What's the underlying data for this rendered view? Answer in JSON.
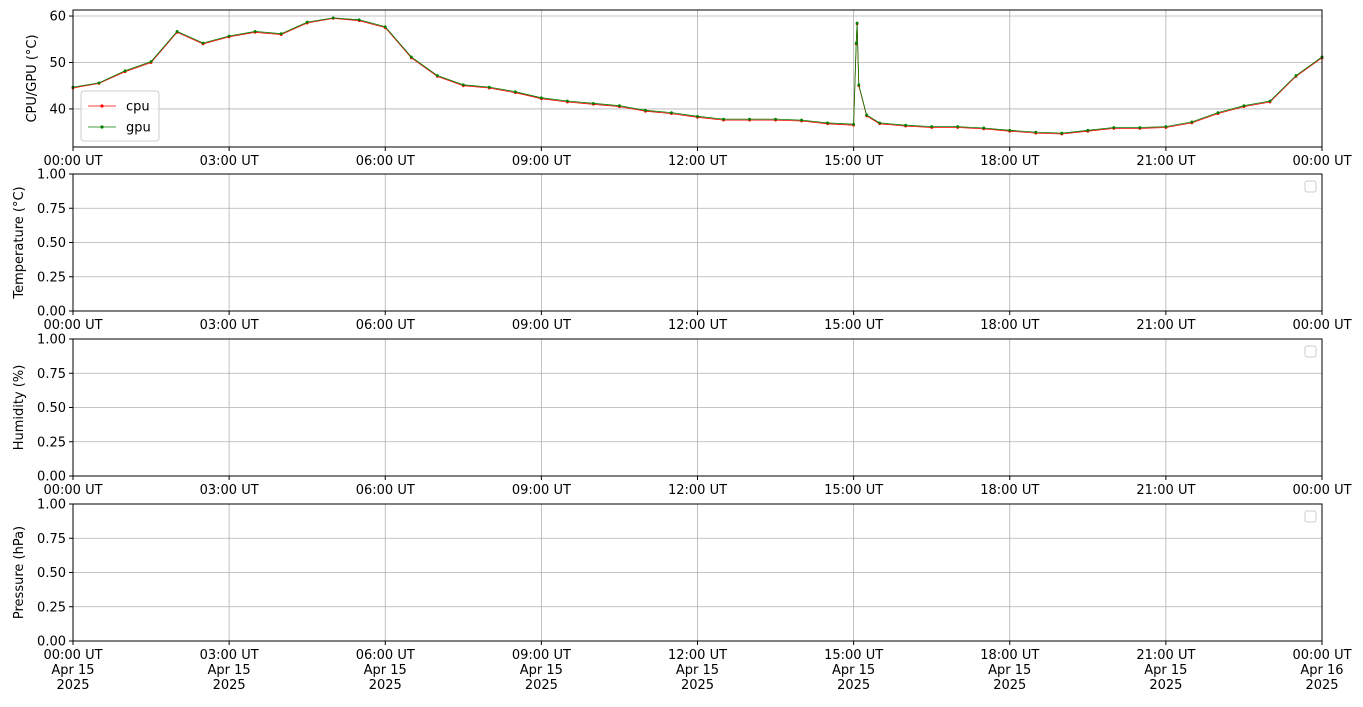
{
  "chart_data": [
    {
      "type": "line",
      "ylabel": "CPU/GPU (°C)",
      "x": [
        "2025-04-15T00:00",
        "2025-04-15T00:30",
        "2025-04-15T01:00",
        "2025-04-15T01:30",
        "2025-04-15T02:00",
        "2025-04-15T02:30",
        "2025-04-15T03:00",
        "2025-04-15T03:30",
        "2025-04-15T04:00",
        "2025-04-15T04:30",
        "2025-04-15T05:00",
        "2025-04-15T05:30",
        "2025-04-15T06:00",
        "2025-04-15T06:30",
        "2025-04-15T07:00",
        "2025-04-15T07:30",
        "2025-04-15T08:00",
        "2025-04-15T08:30",
        "2025-04-15T09:00",
        "2025-04-15T09:30",
        "2025-04-15T10:00",
        "2025-04-15T10:30",
        "2025-04-15T11:00",
        "2025-04-15T11:30",
        "2025-04-15T12:00",
        "2025-04-15T12:30",
        "2025-04-15T13:00",
        "2025-04-15T13:30",
        "2025-04-15T14:00",
        "2025-04-15T14:30",
        "2025-04-15T15:00",
        "2025-04-15T15:03",
        "2025-04-15T15:04",
        "2025-04-15T15:06",
        "2025-04-15T15:15",
        "2025-04-15T15:30",
        "2025-04-15T16:00",
        "2025-04-15T16:30",
        "2025-04-15T17:00",
        "2025-04-15T17:30",
        "2025-04-15T18:00",
        "2025-04-15T18:30",
        "2025-04-15T19:00",
        "2025-04-15T19:30",
        "2025-04-15T20:00",
        "2025-04-15T20:30",
        "2025-04-15T21:00",
        "2025-04-15T21:30",
        "2025-04-15T22:00",
        "2025-04-15T22:30",
        "2025-04-15T23:00",
        "2025-04-15T23:30",
        "2025-04-16T00:00"
      ],
      "series": [
        {
          "name": "cpu",
          "color": "#ff0000",
          "values": [
            44.5,
            45.5,
            48,
            50,
            56.5,
            54,
            55.5,
            56.5,
            56,
            58.5,
            59.5,
            59,
            57.5,
            51,
            47,
            45,
            44.5,
            43.5,
            42.2,
            41.5,
            41,
            40.5,
            39.5,
            39,
            38.2,
            37.6,
            37.6,
            37.6,
            37.4,
            36.8,
            36.5,
            54,
            58.3,
            45,
            38.5,
            36.8,
            36.3,
            36,
            36,
            35.7,
            35.2,
            34.8,
            34.6,
            35.2,
            35.8,
            35.8,
            36,
            37,
            39,
            40.5,
            41.5,
            47,
            51
          ]
        },
        {
          "name": "gpu",
          "color": "#008000",
          "values": [
            44.7,
            45.6,
            48.2,
            50.2,
            56.7,
            54.2,
            55.7,
            56.7,
            56.2,
            58.7,
            59.6,
            59.2,
            57.7,
            51.2,
            47.2,
            45.2,
            44.7,
            43.7,
            42.4,
            41.7,
            41.2,
            40.7,
            39.7,
            39.2,
            38.4,
            37.8,
            37.8,
            37.8,
            37.6,
            37,
            36.7,
            54.2,
            58.5,
            45.2,
            38.7,
            37,
            36.5,
            36.2,
            36.2,
            35.9,
            35.4,
            35,
            34.8,
            35.4,
            36,
            36,
            36.2,
            37.2,
            39.2,
            40.7,
            41.7,
            47.2,
            51.2
          ]
        }
      ],
      "xlim": [
        "2025-04-15T00:00",
        "2025-04-16T00:00"
      ],
      "xticks": [
        {
          "value": "2025-04-15T00:00",
          "label": "00:00 UT"
        },
        {
          "value": "2025-04-15T03:00",
          "label": "03:00 UT"
        },
        {
          "value": "2025-04-15T06:00",
          "label": "06:00 UT"
        },
        {
          "value": "2025-04-15T09:00",
          "label": "09:00 UT"
        },
        {
          "value": "2025-04-15T12:00",
          "label": "12:00 UT"
        },
        {
          "value": "2025-04-15T15:00",
          "label": "15:00 UT"
        },
        {
          "value": "2025-04-15T18:00",
          "label": "18:00 UT"
        },
        {
          "value": "2025-04-15T21:00",
          "label": "21:00 UT"
        },
        {
          "value": "2025-04-16T00:00",
          "label": "00:00 UT"
        }
      ],
      "ylim": [
        31.8,
        61.3
      ],
      "yticks": [
        40,
        50,
        60
      ],
      "grid": true,
      "legend": "lower left"
    },
    {
      "type": "line",
      "ylabel": "Temperature (°C)",
      "series": [],
      "xlim": [
        "2025-04-15T00:00",
        "2025-04-16T00:00"
      ],
      "xticks": [
        {
          "value": "2025-04-15T00:00",
          "label": "00:00 UT"
        },
        {
          "value": "2025-04-15T03:00",
          "label": "03:00 UT"
        },
        {
          "value": "2025-04-15T06:00",
          "label": "06:00 UT"
        },
        {
          "value": "2025-04-15T09:00",
          "label": "09:00 UT"
        },
        {
          "value": "2025-04-15T12:00",
          "label": "12:00 UT"
        },
        {
          "value": "2025-04-15T15:00",
          "label": "15:00 UT"
        },
        {
          "value": "2025-04-15T18:00",
          "label": "18:00 UT"
        },
        {
          "value": "2025-04-15T21:00",
          "label": "21:00 UT"
        },
        {
          "value": "2025-04-16T00:00",
          "label": "00:00 UT"
        }
      ],
      "ylim": [
        0,
        1
      ],
      "yticks": [
        {
          "value": 0,
          "label": "0.00"
        },
        {
          "value": 0.25,
          "label": "0.25"
        },
        {
          "value": 0.5,
          "label": "0.50"
        },
        {
          "value": 0.75,
          "label": "0.75"
        },
        {
          "value": 1,
          "label": "1.00"
        }
      ],
      "grid": true,
      "legend": "upper right"
    },
    {
      "type": "line",
      "ylabel": "Humidity (%)",
      "series": [],
      "xlim": [
        "2025-04-15T00:00",
        "2025-04-16T00:00"
      ],
      "xticks": [
        {
          "value": "2025-04-15T00:00",
          "label": "00:00 UT"
        },
        {
          "value": "2025-04-15T03:00",
          "label": "03:00 UT"
        },
        {
          "value": "2025-04-15T06:00",
          "label": "06:00 UT"
        },
        {
          "value": "2025-04-15T09:00",
          "label": "09:00 UT"
        },
        {
          "value": "2025-04-15T12:00",
          "label": "12:00 UT"
        },
        {
          "value": "2025-04-15T15:00",
          "label": "15:00 UT"
        },
        {
          "value": "2025-04-15T18:00",
          "label": "18:00 UT"
        },
        {
          "value": "2025-04-15T21:00",
          "label": "21:00 UT"
        },
        {
          "value": "2025-04-16T00:00",
          "label": "00:00 UT"
        }
      ],
      "ylim": [
        0,
        1
      ],
      "yticks": [
        {
          "value": 0,
          "label": "0.00"
        },
        {
          "value": 0.25,
          "label": "0.25"
        },
        {
          "value": 0.5,
          "label": "0.50"
        },
        {
          "value": 0.75,
          "label": "0.75"
        },
        {
          "value": 1,
          "label": "1.00"
        }
      ],
      "grid": true,
      "legend": "upper right"
    },
    {
      "type": "line",
      "ylabel": "Pressure (hPa)",
      "series": [],
      "xlim": [
        "2025-04-15T00:00",
        "2025-04-16T00:00"
      ],
      "xticks": [
        {
          "value": "2025-04-15T00:00",
          "label": "00:00 UT\nApr 15\n2025"
        },
        {
          "value": "2025-04-15T03:00",
          "label": "03:00 UT\nApr 15\n2025"
        },
        {
          "value": "2025-04-15T06:00",
          "label": "06:00 UT\nApr 15\n2025"
        },
        {
          "value": "2025-04-15T09:00",
          "label": "09:00 UT\nApr 15\n2025"
        },
        {
          "value": "2025-04-15T12:00",
          "label": "12:00 UT\nApr 15\n2025"
        },
        {
          "value": "2025-04-15T15:00",
          "label": "15:00 UT\nApr 15\n2025"
        },
        {
          "value": "2025-04-15T18:00",
          "label": "18:00 UT\nApr 15\n2025"
        },
        {
          "value": "2025-04-15T21:00",
          "label": "21:00 UT\nApr 15\n2025"
        },
        {
          "value": "2025-04-16T00:00",
          "label": "00:00 UT\nApr 16\n2025"
        }
      ],
      "ylim": [
        0,
        1
      ],
      "yticks": [
        {
          "value": 0,
          "label": "0.00"
        },
        {
          "value": 0.25,
          "label": "0.25"
        },
        {
          "value": 0.5,
          "label": "0.50"
        },
        {
          "value": 0.75,
          "label": "0.75"
        },
        {
          "value": 1,
          "label": "1.00"
        }
      ],
      "grid": true,
      "legend": "upper right"
    }
  ]
}
